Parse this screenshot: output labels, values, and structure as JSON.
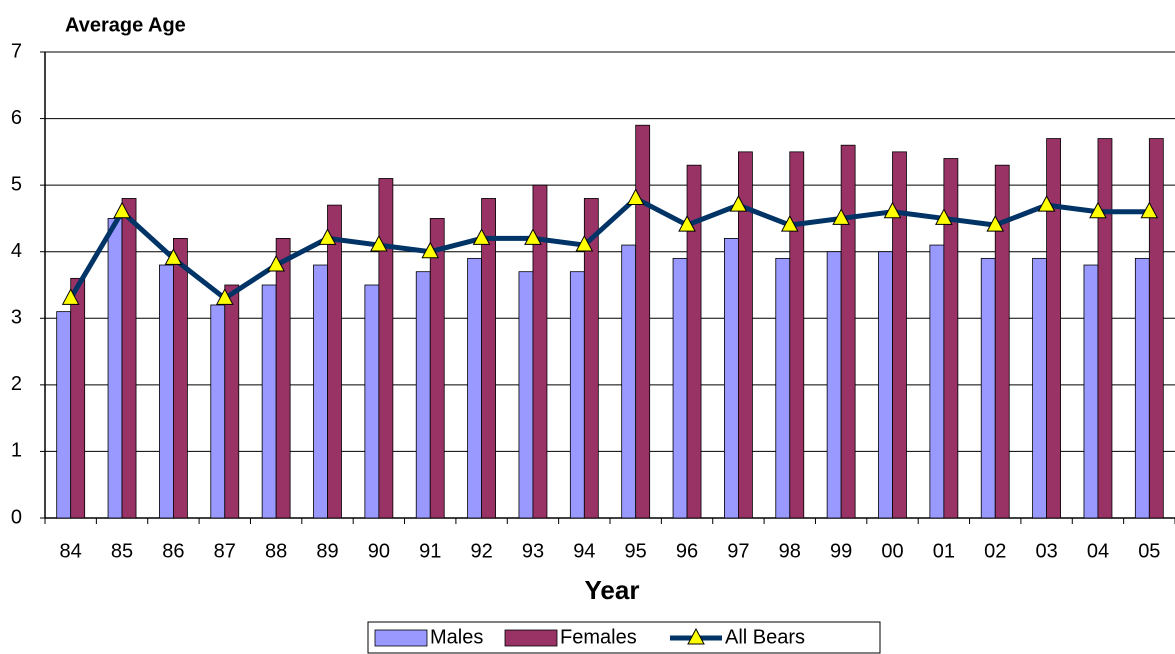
{
  "chart_data": {
    "type": "bar-line",
    "y_label": "Average Age",
    "x_label": "Year",
    "categories": [
      "84",
      "85",
      "86",
      "87",
      "88",
      "89",
      "90",
      "91",
      "92",
      "93",
      "94",
      "95",
      "96",
      "97",
      "98",
      "99",
      "00",
      "01",
      "02",
      "03",
      "04",
      "05"
    ],
    "series": [
      {
        "name": "Males",
        "type": "bar",
        "color": "#9999ff",
        "values": [
          3.1,
          4.5,
          3.8,
          3.2,
          3.5,
          3.8,
          3.5,
          3.7,
          3.9,
          3.7,
          3.7,
          4.1,
          3.9,
          4.2,
          3.9,
          4.0,
          4.0,
          4.1,
          3.9,
          3.9,
          3.8,
          3.9
        ]
      },
      {
        "name": "Females",
        "type": "bar",
        "color": "#993366",
        "values": [
          3.6,
          4.8,
          4.2,
          3.5,
          4.2,
          4.7,
          5.1,
          4.5,
          4.8,
          5.0,
          4.8,
          5.9,
          5.3,
          5.5,
          5.5,
          5.6,
          5.5,
          5.4,
          5.3,
          5.7,
          5.7,
          5.7
        ]
      },
      {
        "name": "All Bears",
        "type": "line",
        "color": "#003366",
        "marker_color": "#ffff00",
        "values": [
          3.3,
          4.6,
          3.9,
          3.3,
          3.8,
          4.2,
          4.1,
          4.0,
          4.2,
          4.2,
          4.1,
          4.8,
          4.4,
          4.7,
          4.4,
          4.5,
          4.6,
          4.5,
          4.4,
          4.7,
          4.6,
          4.6
        ]
      }
    ],
    "ylim": [
      0,
      7
    ],
    "yticks": [
      0,
      1,
      2,
      3,
      4,
      5,
      6,
      7
    ],
    "grid": true,
    "legend": "bottom"
  }
}
